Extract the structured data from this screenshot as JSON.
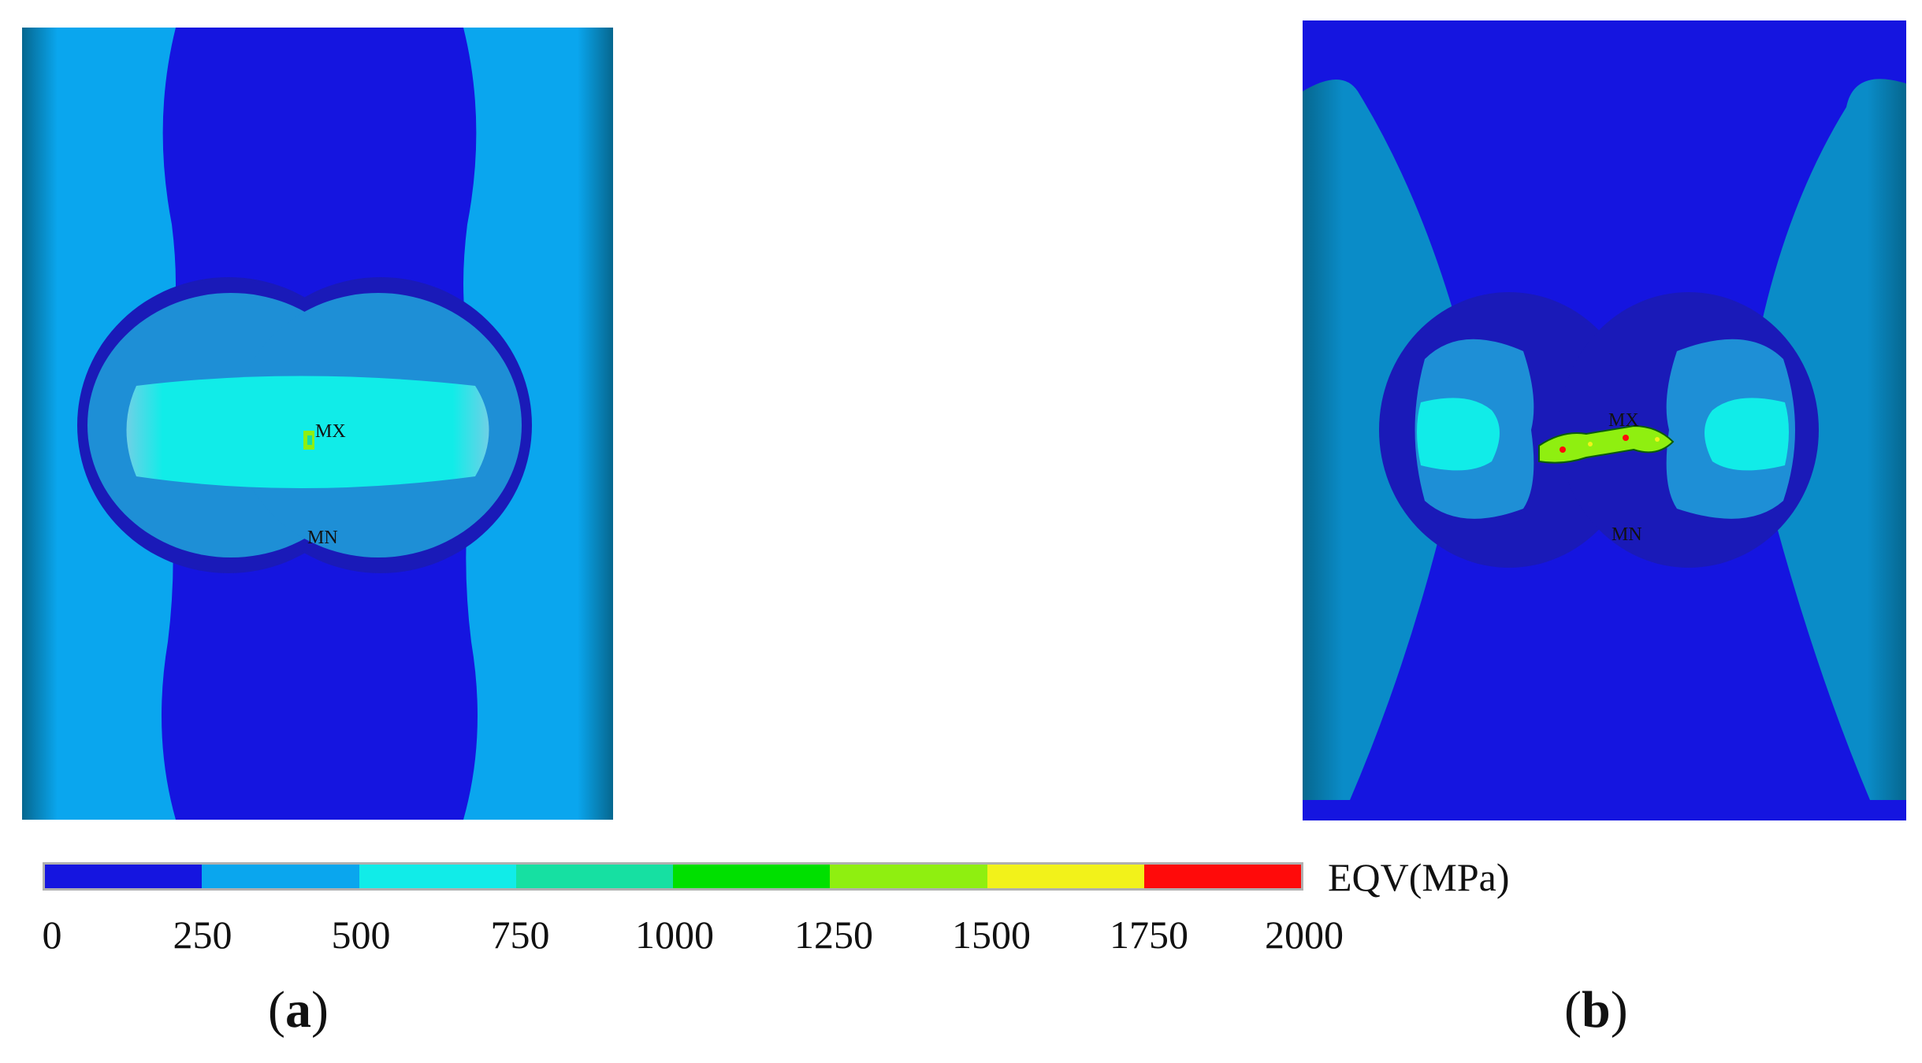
{
  "panels": [
    {
      "caption_letter": "a",
      "label_max": "MX",
      "label_min": "MN"
    },
    {
      "caption_letter": "b",
      "label_max": "MX",
      "label_min": "MN"
    }
  ],
  "colorbar": {
    "unit_label": "EQV(MPa)",
    "ticks": [
      "0",
      "250",
      "500",
      "750",
      "1000",
      "1250",
      "1500",
      "1750",
      "2000"
    ],
    "range": [
      0,
      2000
    ],
    "colors": [
      "#1515e0",
      "#0aa6ee",
      "#11ece8",
      "#16e0a2",
      "#00e000",
      "#8fef10",
      "#f2f21a",
      "#ff0a0a"
    ]
  },
  "colors": {
    "band_0_250": "#1515e0",
    "band_250_500": "#0aa6ee",
    "band_500_750": "#11ece8",
    "band_750_1000": "#16e0a2"
  }
}
